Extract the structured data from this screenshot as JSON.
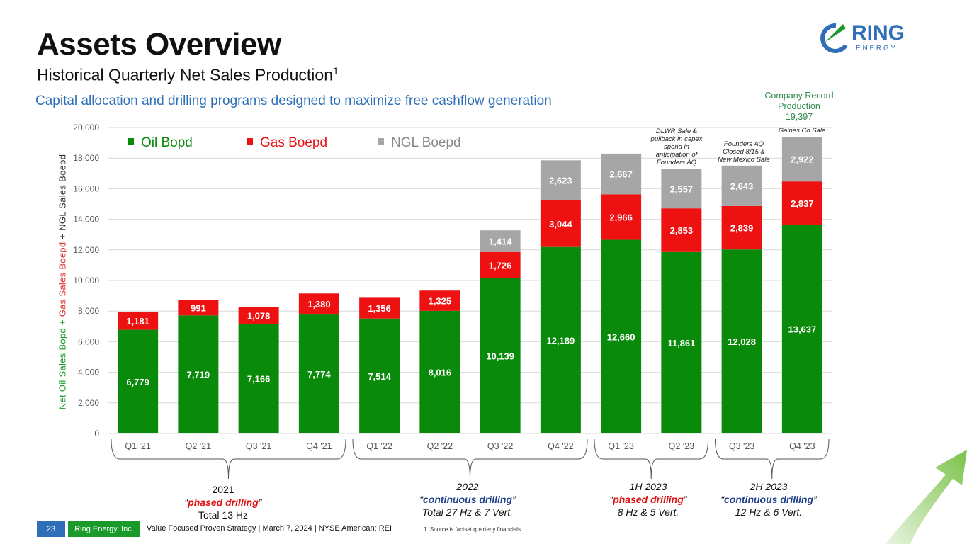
{
  "header": {
    "title": "Assets Overview",
    "subtitle": "Historical Quarterly Net Sales Production",
    "subtitle_sup": "1",
    "tagline": "Capital allocation and drilling programs designed to maximize free cashflow generation"
  },
  "logo": {
    "name": "RING",
    "sub": "E N E R G Y"
  },
  "ylabel": {
    "oil": "Net Oil Sales Bopd + ",
    "gas": "Gas Sales Boepd",
    "ngl": " + NGL Sales Boepd"
  },
  "record": {
    "line1": "Company Record",
    "line2": "Production",
    "line3": "19,397"
  },
  "notes": {
    "q2_23": [
      "DLWR Sale &",
      "pullback in capex",
      "spend in",
      "anticipation of",
      "Founders AQ"
    ],
    "q3_23": [
      "Founders AQ",
      "Closed 8/15 &",
      "New Mexico Sale"
    ],
    "q4_23": [
      "Gaines Co Sale"
    ]
  },
  "groups": [
    {
      "year": "2021",
      "drill": "phased drilling",
      "kind": "red",
      "detail": "Total 13 Hz"
    },
    {
      "year": "2022",
      "drill": "continuous drilling",
      "kind": "blue",
      "detail": "Total 27 Hz & 7 Vert."
    },
    {
      "year": "1H 2023",
      "drill": "phased drilling",
      "kind": "red",
      "detail": "8 Hz & 5 Vert."
    },
    {
      "year": "2H 2023",
      "drill": "continuous drilling",
      "kind": "blue",
      "detail": "12 Hz & 6 Vert."
    }
  ],
  "footer": {
    "page": "23",
    "company": "Ring Energy, Inc.",
    "text": "Value Focused Proven Strategy | March 7, 2024 | NYSE American: REI",
    "footnote": "1.    Source is factset quarterly financials."
  },
  "colors": {
    "oil": "#0a8a0a",
    "gas": "#ee1111",
    "ngl": "#a6a6a6",
    "accent": "#2e6fb7"
  },
  "chart_data": {
    "type": "bar",
    "stacked": true,
    "categories": [
      "Q1 '21",
      "Q2 '21",
      "Q3 '21",
      "Q4 '21",
      "Q1 '22",
      "Q2 '22",
      "Q3 '22",
      "Q4 '22",
      "Q1 '23",
      "Q2 '23",
      "Q3 '23",
      "Q4 '23"
    ],
    "series": [
      {
        "name": "Oil Bopd",
        "values": [
          6779,
          7719,
          7166,
          7774,
          7514,
          8016,
          10139,
          12189,
          12660,
          11861,
          12028,
          13637
        ]
      },
      {
        "name": "Gas Boepd",
        "values": [
          1181,
          991,
          1078,
          1380,
          1356,
          1325,
          1726,
          3044,
          2966,
          2853,
          2839,
          2837
        ]
      },
      {
        "name": "NGL Boepd",
        "values": [
          null,
          null,
          null,
          null,
          null,
          null,
          1414,
          2623,
          2667,
          2557,
          2643,
          2922
        ]
      }
    ],
    "ylabel": "Net Oil Sales Bopd + Gas Sales Boepd + NGL Sales Boepd",
    "ylim": [
      0,
      20000
    ],
    "yticks": [
      0,
      2000,
      4000,
      6000,
      8000,
      10000,
      12000,
      14000,
      16000,
      18000,
      20000
    ],
    "ytick_labels": [
      "0",
      "2,000",
      "4,000",
      "6,000",
      "8,000",
      "10,000",
      "12,000",
      "14,000",
      "16,000",
      "18,000",
      "20,000"
    ],
    "legend_position": "top-left"
  }
}
